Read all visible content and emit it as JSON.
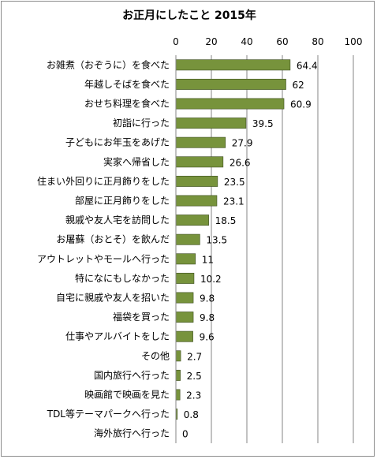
{
  "chart_data": {
    "type": "bar",
    "orientation": "horizontal",
    "title": "お正月にしたこと 2015年",
    "xlabel": "",
    "ylabel": "",
    "xlim": [
      0,
      100
    ],
    "xticks": [
      0,
      20,
      40,
      60,
      80,
      100
    ],
    "grid": true,
    "legend": "none",
    "bar_color": "#77933c",
    "categories": [
      "お雑煮（おぞうに）を食べた",
      "年越しそばを食べた",
      "おせち料理を食べた",
      "初詣に行った",
      "子どもにお年玉をあげた",
      "実家へ帰省した",
      "住まい外回りに正月飾りをした",
      "部屋に正月飾りをした",
      "親戚や友人宅を訪問した",
      "お屠蘇（おとそ）を飲んだ",
      "アウトレットやモールへ行った",
      "特になにもしなかった",
      "自宅に親戚や友人を招いた",
      "福袋を買った",
      "仕事やアルバイトをした",
      "その他",
      "国内旅行へ行った",
      "映画館で映画を見た",
      "TDL等テーマパークへ行った",
      "海外旅行へ行った"
    ],
    "values": [
      64.4,
      62,
      60.9,
      39.5,
      27.9,
      26.6,
      23.5,
      23.1,
      18.5,
      13.5,
      11,
      10.2,
      9.8,
      9.8,
      9.6,
      2.7,
      2.5,
      2.3,
      0.8,
      0
    ]
  }
}
